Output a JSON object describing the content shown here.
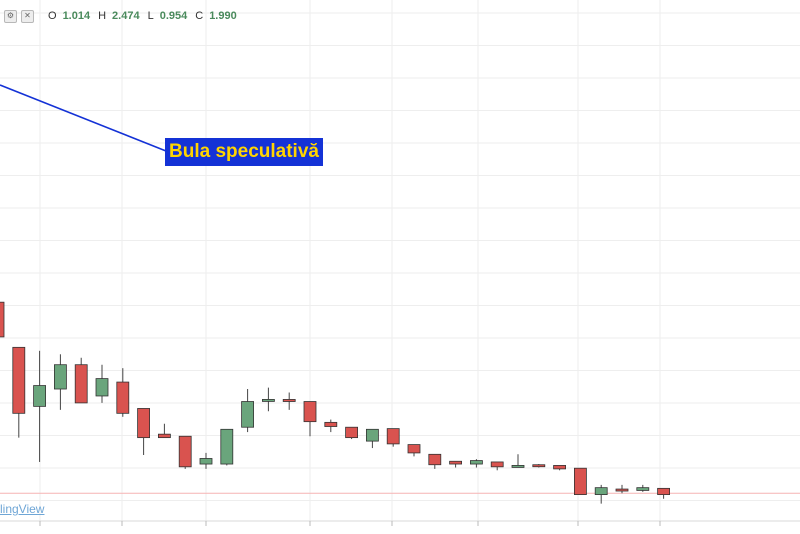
{
  "toolbar": {
    "icons": [
      "settings-icon",
      "close-icon"
    ],
    "ohlc": [
      {
        "key": "O",
        "value": "1.014"
      },
      {
        "key": "H",
        "value": "2.474"
      },
      {
        "key": "L",
        "value": "0.954"
      },
      {
        "key": "C",
        "value": "1.990"
      }
    ]
  },
  "annotation": {
    "label": "Bula speculativă"
  },
  "watermark": {
    "text": "lingView"
  },
  "colors": {
    "up": "#6aa57c",
    "down": "#d9534f",
    "grid": "#eeeeee",
    "trendline": "#1432d6",
    "price_line": "#f5b3b3",
    "callout_bg": "#1432d6",
    "callout_text": "#ffd400"
  },
  "chart_data": {
    "type": "candlestick",
    "candles": [
      {
        "o": 4.15,
        "h": 4.7,
        "l": 3.25,
        "c": 3.65
      },
      {
        "o": 3.5,
        "h": 3.5,
        "l": 2.2,
        "c": 2.55
      },
      {
        "o": 2.65,
        "h": 3.45,
        "l": 1.85,
        "c": 2.95
      },
      {
        "o": 2.9,
        "h": 3.4,
        "l": 2.6,
        "c": 3.25
      },
      {
        "o": 3.25,
        "h": 3.35,
        "l": 2.7,
        "c": 2.7
      },
      {
        "o": 2.8,
        "h": 3.25,
        "l": 2.7,
        "c": 3.05
      },
      {
        "o": 3.0,
        "h": 3.2,
        "l": 2.5,
        "c": 2.55
      },
      {
        "o": 2.62,
        "h": 2.62,
        "l": 1.95,
        "c": 2.2
      },
      {
        "o": 2.25,
        "h": 2.4,
        "l": 2.2,
        "c": 2.2
      },
      {
        "o": 2.22,
        "h": 2.22,
        "l": 1.75,
        "c": 1.78
      },
      {
        "o": 1.82,
        "h": 1.98,
        "l": 1.75,
        "c": 1.9
      },
      {
        "o": 1.82,
        "h": 2.3,
        "l": 1.8,
        "c": 2.32
      },
      {
        "o": 2.35,
        "h": 2.9,
        "l": 2.28,
        "c": 2.72
      },
      {
        "o": 2.74,
        "h": 2.92,
        "l": 2.58,
        "c": 2.75
      },
      {
        "o": 2.75,
        "h": 2.85,
        "l": 2.6,
        "c": 2.72
      },
      {
        "o": 2.72,
        "h": 2.72,
        "l": 2.22,
        "c": 2.43
      },
      {
        "o": 2.42,
        "h": 2.46,
        "l": 2.28,
        "c": 2.36
      },
      {
        "o": 2.35,
        "h": 2.35,
        "l": 2.18,
        "c": 2.2
      },
      {
        "o": 2.15,
        "h": 2.32,
        "l": 2.05,
        "c": 2.32
      },
      {
        "o": 2.33,
        "h": 2.33,
        "l": 2.07,
        "c": 2.11
      },
      {
        "o": 2.1,
        "h": 2.1,
        "l": 1.93,
        "c": 1.98
      },
      {
        "o": 1.96,
        "h": 1.96,
        "l": 1.75,
        "c": 1.81
      },
      {
        "o": 1.86,
        "h": 1.86,
        "l": 1.77,
        "c": 1.82
      },
      {
        "o": 1.82,
        "h": 1.89,
        "l": 1.77,
        "c": 1.87
      },
      {
        "o": 1.85,
        "h": 1.85,
        "l": 1.73,
        "c": 1.78
      },
      {
        "o": 1.79,
        "h": 1.96,
        "l": 1.77,
        "c": 1.8
      },
      {
        "o": 1.81,
        "h": 1.82,
        "l": 1.77,
        "c": 1.8
      },
      {
        "o": 1.8,
        "h": 1.8,
        "l": 1.73,
        "c": 1.75
      },
      {
        "o": 1.76,
        "h": 1.76,
        "l": 1.38,
        "c": 1.38
      },
      {
        "o": 1.38,
        "h": 1.52,
        "l": 1.25,
        "c": 1.48
      },
      {
        "o": 1.46,
        "h": 1.52,
        "l": 1.4,
        "c": 1.44
      },
      {
        "o": 1.44,
        "h": 1.52,
        "l": 1.42,
        "c": 1.48
      },
      {
        "o": 1.47,
        "h": 1.47,
        "l": 1.32,
        "c": 1.38
      }
    ],
    "y_range": [
      1.0,
      8.5
    ],
    "last_price": 1.4,
    "grid": true
  }
}
